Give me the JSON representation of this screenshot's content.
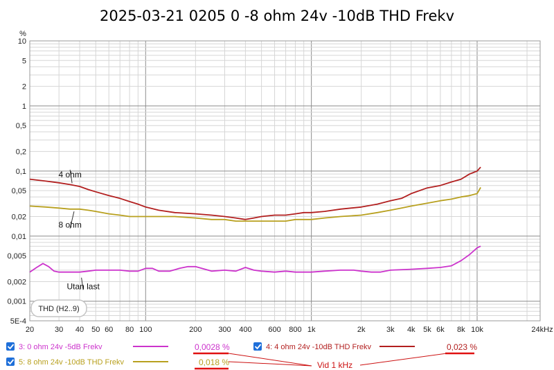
{
  "chart_data": {
    "type": "line",
    "title": "2025-03-21 0205 0 -8 ohm 24v -10dB THD Frekv",
    "ylabel": "%",
    "xlabel": "",
    "x_scale": "log",
    "y_scale": "log",
    "xlim": [
      20,
      24000
    ],
    "ylim": [
      0.0005,
      10
    ],
    "grid": true,
    "x_ticks": [
      {
        "v": 20,
        "l": "20"
      },
      {
        "v": 30,
        "l": "30"
      },
      {
        "v": 40,
        "l": "40"
      },
      {
        "v": 50,
        "l": "50"
      },
      {
        "v": 60,
        "l": "60"
      },
      {
        "v": 80,
        "l": "80"
      },
      {
        "v": 100,
        "l": "100"
      },
      {
        "v": 200,
        "l": "200"
      },
      {
        "v": 300,
        "l": "300"
      },
      {
        "v": 400,
        "l": "400"
      },
      {
        "v": 600,
        "l": "600"
      },
      {
        "v": 800,
        "l": "800"
      },
      {
        "v": 1000,
        "l": "1k"
      },
      {
        "v": 2000,
        "l": "2k"
      },
      {
        "v": 3000,
        "l": "3k"
      },
      {
        "v": 4000,
        "l": "4k"
      },
      {
        "v": 5000,
        "l": "5k"
      },
      {
        "v": 6000,
        "l": "6k"
      },
      {
        "v": 8000,
        "l": "8k"
      },
      {
        "v": 10000,
        "l": "10k"
      },
      {
        "v": 24000,
        "l": "24kHz"
      }
    ],
    "y_ticks": [
      {
        "v": 10,
        "l": "10"
      },
      {
        "v": 5,
        "l": "5"
      },
      {
        "v": 2,
        "l": "2"
      },
      {
        "v": 1,
        "l": "1"
      },
      {
        "v": 0.5,
        "l": "0,5"
      },
      {
        "v": 0.2,
        "l": "0,2"
      },
      {
        "v": 0.1,
        "l": "0,1"
      },
      {
        "v": 0.05,
        "l": "0,05"
      },
      {
        "v": 0.02,
        "l": "0,02"
      },
      {
        "v": 0.01,
        "l": "0,01"
      },
      {
        "v": 0.005,
        "l": "0,005"
      },
      {
        "v": 0.002,
        "l": "0,002"
      },
      {
        "v": 0.001,
        "l": "0,001"
      },
      {
        "v": 0.0005,
        "l": "5E-4"
      }
    ],
    "series": [
      {
        "name": "3: 0 ohm 24v -5dB Frekv",
        "color": "#cc33cc",
        "x": [
          20,
          22,
          24,
          26,
          28,
          30,
          35,
          40,
          45,
          50,
          60,
          70,
          80,
          90,
          100,
          110,
          120,
          140,
          160,
          180,
          200,
          250,
          300,
          350,
          400,
          450,
          500,
          600,
          700,
          800,
          900,
          1000,
          1200,
          1500,
          1800,
          2000,
          2300,
          2600,
          3000,
          4000,
          5000,
          6000,
          7000,
          8000,
          9000,
          10000,
          10500
        ],
        "y": [
          0.0028,
          0.0033,
          0.0038,
          0.0034,
          0.0029,
          0.0028,
          0.0028,
          0.0028,
          0.0029,
          0.003,
          0.003,
          0.003,
          0.0029,
          0.0029,
          0.0032,
          0.0032,
          0.0029,
          0.0029,
          0.0032,
          0.0034,
          0.0034,
          0.0029,
          0.003,
          0.0029,
          0.0033,
          0.003,
          0.0029,
          0.0028,
          0.0029,
          0.0028,
          0.0028,
          0.0028,
          0.0029,
          0.003,
          0.003,
          0.0029,
          0.0028,
          0.0028,
          0.003,
          0.0031,
          0.0032,
          0.0033,
          0.0035,
          0.0042,
          0.0052,
          0.0066,
          0.007
        ]
      },
      {
        "name": "4: 4 ohm 24v -10dB THD Frekv",
        "color": "#b21f1f",
        "x": [
          20,
          25,
          30,
          35,
          40,
          45,
          50,
          60,
          70,
          80,
          90,
          100,
          120,
          150,
          200,
          250,
          300,
          350,
          400,
          450,
          500,
          600,
          700,
          800,
          900,
          1000,
          1200,
          1500,
          2000,
          2500,
          3000,
          3500,
          4000,
          5000,
          6000,
          7000,
          8000,
          9000,
          10000,
          10500
        ],
        "y": [
          0.075,
          0.07,
          0.066,
          0.062,
          0.058,
          0.052,
          0.048,
          0.042,
          0.038,
          0.034,
          0.031,
          0.028,
          0.025,
          0.023,
          0.022,
          0.021,
          0.02,
          0.019,
          0.018,
          0.019,
          0.02,
          0.021,
          0.021,
          0.022,
          0.023,
          0.023,
          0.024,
          0.026,
          0.028,
          0.031,
          0.035,
          0.038,
          0.045,
          0.055,
          0.06,
          0.068,
          0.075,
          0.09,
          0.1,
          0.115
        ]
      },
      {
        "name": "5: 8 ohm 24v -10dB THD Frekv",
        "color": "#b8a01e",
        "x": [
          20,
          25,
          30,
          35,
          40,
          45,
          50,
          60,
          70,
          80,
          90,
          100,
          120,
          150,
          200,
          250,
          300,
          350,
          400,
          450,
          500,
          600,
          700,
          800,
          900,
          1000,
          1200,
          1500,
          2000,
          2500,
          3000,
          3500,
          4000,
          5000,
          6000,
          7000,
          8000,
          9000,
          10000,
          10500
        ],
        "y": [
          0.029,
          0.028,
          0.027,
          0.026,
          0.026,
          0.025,
          0.024,
          0.022,
          0.021,
          0.02,
          0.02,
          0.02,
          0.02,
          0.02,
          0.019,
          0.018,
          0.018,
          0.017,
          0.017,
          0.017,
          0.017,
          0.017,
          0.017,
          0.018,
          0.018,
          0.018,
          0.019,
          0.02,
          0.021,
          0.023,
          0.025,
          0.027,
          0.029,
          0.032,
          0.035,
          0.037,
          0.04,
          0.042,
          0.045,
          0.056
        ]
      }
    ],
    "annotations": [
      {
        "text": "4 ohm",
        "x": 35,
        "y": 0.11,
        "tx": 36,
        "ty": 0.065
      },
      {
        "text": "8 ohm",
        "x": 35,
        "y": 0.0145,
        "tx": 37,
        "ty": 0.024
      },
      {
        "text": "Utan last",
        "x": 42,
        "y": 0.00165,
        "tx": 41,
        "ty": 0.0023
      }
    ],
    "legend_box": "THD (H2..9)",
    "legend_placement": "bottom",
    "legend": [
      {
        "label": "3: 0 ohm 24v -5dB Frekv",
        "value": "0,0028 %",
        "checked": true
      },
      {
        "label": "4: 4 ohm 24v -10dB THD Frekv",
        "value": "0,023 %",
        "checked": true
      },
      {
        "label": "5: 8 ohm 24v -10dB THD Frekv",
        "value": "0,018 %",
        "checked": true
      }
    ],
    "callout": "Vid 1 kHz"
  },
  "colors": {
    "grid_minor": "#d6d6d6",
    "grid_major": "#8c8c8c",
    "underline": "#e01010",
    "callout_line": "#cc1111",
    "checkbox": "#1e6fd9"
  }
}
